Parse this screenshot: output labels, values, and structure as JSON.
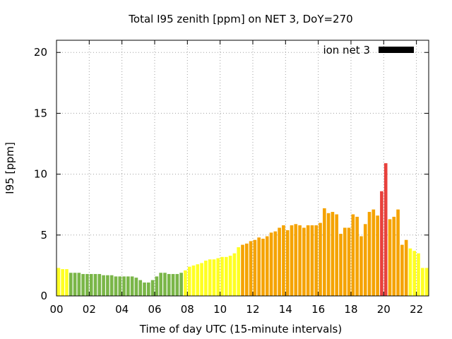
{
  "chart_data": {
    "type": "bar",
    "title": "Total I95 zenith [ppm] on NET 3, DoY=270",
    "xlabel": "Time of day UTC (15-minute intervals)",
    "ylabel": "I95 [ppm]",
    "xlim": [
      0,
      22.75
    ],
    "ylim": [
      0,
      21
    ],
    "xticks": [
      0,
      2,
      4,
      6,
      8,
      10,
      12,
      14,
      16,
      18,
      20,
      22
    ],
    "xtick_labels": [
      "00",
      "02",
      "04",
      "06",
      "08",
      "10",
      "12",
      "14",
      "16",
      "18",
      "20",
      "22"
    ],
    "yticks": [
      0,
      5,
      10,
      15,
      20
    ],
    "ytick_labels": [
      "0",
      "5",
      "10",
      "15",
      "20"
    ],
    "grid": true,
    "legend_position": "top-right",
    "bar_width_hours": 0.2,
    "series": [
      {
        "name": "ion net 3",
        "legend_color": "#000000",
        "x": [
          0.0,
          0.25,
          0.5,
          0.75,
          1.0,
          1.25,
          1.5,
          1.75,
          2.0,
          2.25,
          2.5,
          2.75,
          3.0,
          3.25,
          3.5,
          3.75,
          4.0,
          4.25,
          4.5,
          4.75,
          5.0,
          5.25,
          5.5,
          5.75,
          6.0,
          6.25,
          6.5,
          6.75,
          7.0,
          7.25,
          7.5,
          7.75,
          8.0,
          8.25,
          8.5,
          8.75,
          9.0,
          9.25,
          9.5,
          9.75,
          10.0,
          10.25,
          10.5,
          10.75,
          11.0,
          11.25,
          11.5,
          11.75,
          12.0,
          12.25,
          12.5,
          12.75,
          13.0,
          13.25,
          13.5,
          13.75,
          14.0,
          14.25,
          14.5,
          14.75,
          15.0,
          15.25,
          15.5,
          15.75,
          16.0,
          16.25,
          16.5,
          16.75,
          17.0,
          17.25,
          17.5,
          17.75,
          18.0,
          18.25,
          18.5,
          18.75,
          19.0,
          19.25,
          19.5,
          19.75,
          20.0,
          20.25,
          20.5,
          20.75,
          21.0,
          21.25,
          21.5,
          21.75,
          22.0,
          22.25,
          22.5
        ],
        "values": [
          2.3,
          2.2,
          2.2,
          1.9,
          1.9,
          1.9,
          1.8,
          1.8,
          1.8,
          1.8,
          1.8,
          1.7,
          1.7,
          1.7,
          1.6,
          1.6,
          1.6,
          1.6,
          1.6,
          1.5,
          1.3,
          1.1,
          1.1,
          1.3,
          1.6,
          1.9,
          1.9,
          1.8,
          1.8,
          1.8,
          1.9,
          2.1,
          2.4,
          2.5,
          2.6,
          2.7,
          2.9,
          3.0,
          3.0,
          3.1,
          3.2,
          3.2,
          3.3,
          3.5,
          4.0,
          4.2,
          4.3,
          4.5,
          4.6,
          4.8,
          4.7,
          4.9,
          5.2,
          5.3,
          5.6,
          5.8,
          5.4,
          5.8,
          5.9,
          5.8,
          5.6,
          5.8,
          5.8,
          5.8,
          6.0,
          7.2,
          6.8,
          6.9,
          6.7,
          5.1,
          5.6,
          5.6,
          6.7,
          6.5,
          4.9,
          5.9,
          6.9,
          7.1,
          6.6,
          8.6,
          10.9,
          6.3,
          6.5,
          7.1,
          4.2,
          4.6,
          3.9,
          3.7,
          3.5,
          2.3,
          2.3
        ],
        "colors": [
          "#ffff22",
          "#ffff22",
          "#ffff22",
          "#7ab648",
          "#7ab648",
          "#7ab648",
          "#7ab648",
          "#7ab648",
          "#7ab648",
          "#7ab648",
          "#7ab648",
          "#7ab648",
          "#7ab648",
          "#7ab648",
          "#7ab648",
          "#7ab648",
          "#7ab648",
          "#7ab648",
          "#7ab648",
          "#7ab648",
          "#7ab648",
          "#7ab648",
          "#7ab648",
          "#7ab648",
          "#7ab648",
          "#7ab648",
          "#7ab648",
          "#7ab648",
          "#7ab648",
          "#7ab648",
          "#7ab648",
          "#ffff22",
          "#ffff22",
          "#ffff22",
          "#ffff22",
          "#ffff22",
          "#ffff22",
          "#ffff22",
          "#ffff22",
          "#ffff22",
          "#ffff22",
          "#ffff22",
          "#ffff22",
          "#ffff22",
          "#ffff22",
          "#f5a300",
          "#f5a300",
          "#f5a300",
          "#f5a300",
          "#f5a300",
          "#f5a300",
          "#f5a300",
          "#f5a300",
          "#f5a300",
          "#f5a300",
          "#f5a300",
          "#f5a300",
          "#f5a300",
          "#f5a300",
          "#f5a300",
          "#f5a300",
          "#f5a300",
          "#f5a300",
          "#f5a300",
          "#f5a300",
          "#f5a300",
          "#f5a300",
          "#f5a300",
          "#f5a300",
          "#f5a300",
          "#f5a300",
          "#f5a300",
          "#f5a300",
          "#f5a300",
          "#f5a300",
          "#f5a300",
          "#f5a300",
          "#f5a300",
          "#f5a300",
          "#e8413c",
          "#e8413c",
          "#f5a300",
          "#f5a300",
          "#f5a300",
          "#f5a300",
          "#f5a300",
          "#ffff22",
          "#ffff22",
          "#ffff22",
          "#ffff22",
          "#ffff22"
        ]
      }
    ]
  }
}
